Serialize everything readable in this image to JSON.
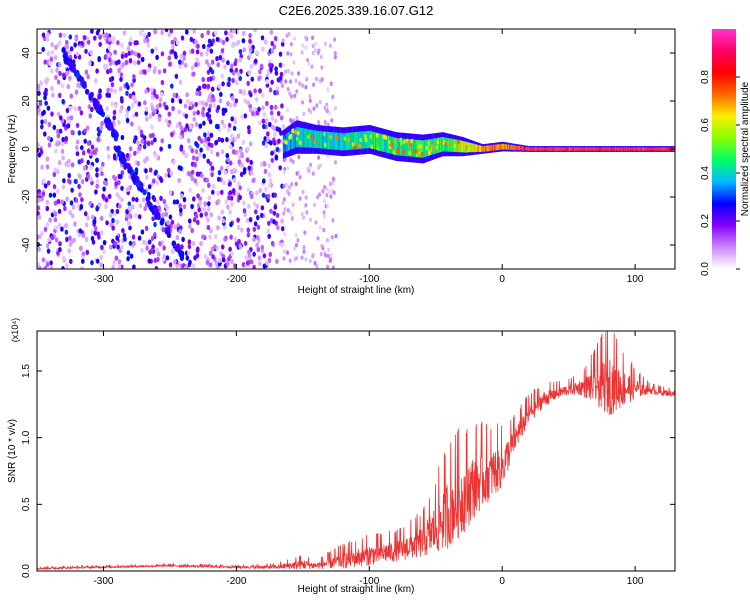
{
  "title": "C2E6.2025.339.16.07.G12",
  "chart_data": [
    {
      "type": "heatmap",
      "name": "spectrogram",
      "xlabel": "Height of straight line (km)",
      "ylabel": "Frequency (Hz)",
      "xlim": [
        -350,
        130
      ],
      "ylim": [
        -50,
        50
      ],
      "xticks": [
        -300,
        -200,
        -100,
        0,
        100
      ],
      "yticks": [
        -40,
        -20,
        0,
        20,
        40
      ],
      "colorbar": {
        "label": "Normalized spectral amplitude",
        "range": [
          0,
          1
        ],
        "ticks": [
          "0.0",
          "0.2",
          "0.4",
          "0.6",
          "0.8"
        ],
        "colors": [
          "#ffffff",
          "#cc88ff",
          "#8800ff",
          "#0000ff",
          "#00bbff",
          "#00ff66",
          "#88ff00",
          "#ffee00",
          "#ff6600",
          "#ff0000",
          "#ff0066",
          "#ff33cc"
        ]
      },
      "noise_region_km": [
        -350,
        -165
      ],
      "sparse_region_km": [
        -165,
        -125
      ],
      "band_track": [
        {
          "x": -165,
          "f": 2,
          "w": 6,
          "a": 0.35
        },
        {
          "x": -155,
          "f": 5,
          "w": 7,
          "a": 0.45
        },
        {
          "x": -140,
          "f": 4,
          "w": 6,
          "a": 0.45
        },
        {
          "x": -120,
          "f": 3,
          "w": 6,
          "a": 0.45
        },
        {
          "x": -100,
          "f": 4,
          "w": 6,
          "a": 0.5
        },
        {
          "x": -80,
          "f": 1,
          "w": 6,
          "a": 0.5
        },
        {
          "x": -60,
          "f": 0,
          "w": 6,
          "a": 0.55
        },
        {
          "x": -45,
          "f": 2,
          "w": 5,
          "a": 0.55
        },
        {
          "x": -30,
          "f": 1,
          "w": 4,
          "a": 0.65
        },
        {
          "x": -15,
          "f": 0,
          "w": 2,
          "a": 0.85
        },
        {
          "x": 0,
          "f": 1,
          "w": 2,
          "a": 0.85
        },
        {
          "x": 20,
          "f": 0,
          "w": 1.2,
          "a": 0.95
        },
        {
          "x": 130,
          "f": 0,
          "w": 1.2,
          "a": 0.95
        }
      ],
      "diagonal_tracks": [
        {
          "from": [
            -330,
            40
          ],
          "to": [
            -290,
            5
          ]
        },
        {
          "from": [
            -290,
            0
          ],
          "to": [
            -240,
            -45
          ]
        }
      ]
    },
    {
      "type": "line",
      "name": "snr",
      "xlabel": "Height of straight line (km)",
      "ylabel": "SNR (10 * v/v)",
      "scale_label": "(x10⁴)",
      "xlim": [
        -350,
        130
      ],
      "ylim": [
        0,
        1.8
      ],
      "xticks": [
        -300,
        -200,
        -100,
        0,
        100
      ],
      "yticks": [
        "0.0",
        "0.5",
        "1.0",
        "1.5"
      ],
      "color": "#ee3333",
      "series": [
        {
          "name": "SNR",
          "x": [
            -350,
            -300,
            -250,
            -200,
            -170,
            -150,
            -140,
            -120,
            -100,
            -80,
            -60,
            -50,
            -40,
            -30,
            -20,
            -10,
            0,
            10,
            20,
            30,
            40,
            50,
            60,
            70,
            80,
            90,
            100,
            110,
            120,
            130
          ],
          "y": [
            0.02,
            0.03,
            0.04,
            0.03,
            0.03,
            0.05,
            0.04,
            0.08,
            0.12,
            0.15,
            0.22,
            0.32,
            0.45,
            0.55,
            0.65,
            0.72,
            0.78,
            1.0,
            1.18,
            1.28,
            1.33,
            1.36,
            1.38,
            1.39,
            1.4,
            1.38,
            1.37,
            1.36,
            1.34,
            1.33
          ],
          "jitter": [
            0.01,
            0.01,
            0.01,
            0.01,
            0.02,
            0.05,
            0.03,
            0.08,
            0.1,
            0.1,
            0.15,
            0.25,
            0.35,
            0.35,
            0.3,
            0.25,
            0.2,
            0.12,
            0.1,
            0.08,
            0.06,
            0.05,
            0.08,
            0.18,
            0.3,
            0.2,
            0.1,
            0.04,
            0.03,
            0.03
          ]
        }
      ]
    }
  ]
}
